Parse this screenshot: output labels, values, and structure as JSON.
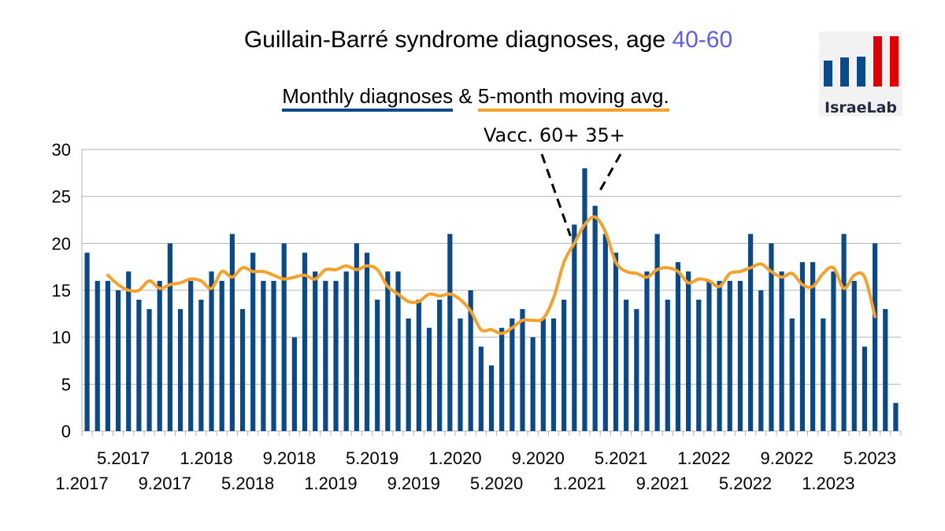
{
  "chart_data": {
    "type": "bar",
    "title_prefix": "Guillain-Barré syndrome diagnoses, age ",
    "title_age": "40-60",
    "legend": {
      "bars_label": "Monthly diagnoses",
      "joiner": "&",
      "line_label": "5-month moving avg."
    },
    "annotation": "Vacc. 60+ 35+",
    "logo_text": "IsraeLab",
    "colors": {
      "bars": "#0b4a8a",
      "line": "#f5a12b",
      "age_highlight": "#5b5ef0",
      "logo_blue": "#0b4a8a",
      "logo_red": "#e50000"
    },
    "ylim": [
      0,
      30
    ],
    "yticks": [
      0,
      5,
      10,
      15,
      20,
      25,
      30
    ],
    "grid": true,
    "x_tick_labels": [
      {
        "label": "1.2017",
        "index": 0,
        "row": 2
      },
      {
        "label": "5.2017",
        "index": 4,
        "row": 1
      },
      {
        "label": "9.2017",
        "index": 8,
        "row": 2
      },
      {
        "label": "1.2018",
        "index": 12,
        "row": 1
      },
      {
        "label": "5.2018",
        "index": 16,
        "row": 2
      },
      {
        "label": "9.2018",
        "index": 20,
        "row": 1
      },
      {
        "label": "1.2019",
        "index": 24,
        "row": 2
      },
      {
        "label": "5.2019",
        "index": 28,
        "row": 1
      },
      {
        "label": "9.2019",
        "index": 32,
        "row": 2
      },
      {
        "label": "1.2020",
        "index": 36,
        "row": 1
      },
      {
        "label": "5.2020",
        "index": 40,
        "row": 2
      },
      {
        "label": "9.2020",
        "index": 44,
        "row": 1
      },
      {
        "label": "1.2021",
        "index": 48,
        "row": 2
      },
      {
        "label": "5.2021",
        "index": 52,
        "row": 1
      },
      {
        "label": "9.2021",
        "index": 56,
        "row": 2
      },
      {
        "label": "1.2022",
        "index": 60,
        "row": 1
      },
      {
        "label": "5.2022",
        "index": 64,
        "row": 2
      },
      {
        "label": "9.2022",
        "index": 68,
        "row": 1
      },
      {
        "label": "1.2023",
        "index": 72,
        "row": 2
      },
      {
        "label": "5.2023",
        "index": 76,
        "row": 1
      }
    ],
    "months": [
      "1.2017",
      "2.2017",
      "3.2017",
      "4.2017",
      "5.2017",
      "6.2017",
      "7.2017",
      "8.2017",
      "9.2017",
      "10.2017",
      "11.2017",
      "12.2017",
      "1.2018",
      "2.2018",
      "3.2018",
      "4.2018",
      "5.2018",
      "6.2018",
      "7.2018",
      "8.2018",
      "9.2018",
      "10.2018",
      "11.2018",
      "12.2018",
      "1.2019",
      "2.2019",
      "3.2019",
      "4.2019",
      "5.2019",
      "6.2019",
      "7.2019",
      "8.2019",
      "9.2019",
      "10.2019",
      "11.2019",
      "12.2019",
      "1.2020",
      "2.2020",
      "3.2020",
      "4.2020",
      "5.2020",
      "6.2020",
      "7.2020",
      "8.2020",
      "9.2020",
      "10.2020",
      "11.2020",
      "12.2020",
      "1.2021",
      "2.2021",
      "3.2021",
      "4.2021",
      "5.2021",
      "6.2021",
      "7.2021",
      "8.2021",
      "9.2021",
      "10.2021",
      "11.2021",
      "12.2021",
      "1.2022",
      "2.2022",
      "3.2022",
      "4.2022",
      "5.2022",
      "6.2022",
      "7.2022",
      "8.2022",
      "9.2022",
      "10.2022",
      "11.2022",
      "12.2022",
      "1.2023",
      "2.2023",
      "3.2023",
      "4.2023",
      "5.2023",
      "6.2023",
      "7.2023"
    ],
    "monthly": [
      19,
      16,
      16,
      15,
      17,
      14,
      13,
      16,
      20,
      13,
      16,
      14,
      17,
      16,
      21,
      13,
      19,
      16,
      16,
      20,
      10,
      19,
      17,
      16,
      16,
      17,
      20,
      19,
      14,
      17,
      17,
      12,
      14,
      11,
      14,
      21,
      12,
      15,
      9,
      7,
      11,
      12,
      13,
      10,
      12,
      12,
      14,
      22,
      28,
      24,
      21,
      19,
      14,
      13,
      17,
      21,
      14,
      18,
      17,
      14,
      16,
      16,
      16,
      16,
      21,
      15,
      20,
      17,
      12,
      18,
      18,
      12,
      17,
      21,
      16,
      9,
      20,
      13,
      3
    ],
    "moving_avg": [
      null,
      null,
      16.6,
      15.6,
      15.0,
      15.0,
      16.0,
      15.2,
      15.6,
      15.8,
      16.2,
      16.0,
      15.2,
      17.0,
      16.4,
      17.4,
      17.0,
      17.0,
      16.6,
      16.2,
      16.4,
      16.6,
      16.2,
      17.2,
      17.2,
      17.6,
      17.2,
      17.6,
      17.2,
      15.4,
      14.6,
      13.8,
      13.8,
      14.6,
      14.4,
      14.6,
      14.0,
      12.8,
      10.8,
      10.8,
      10.4,
      11.0,
      11.8,
      11.8,
      12.0,
      14.2,
      18.0,
      20.0,
      22.0,
      22.8,
      21.2,
      18.0,
      17.0,
      16.8,
      16.4,
      17.2,
      17.4,
      17.0,
      15.8,
      16.2,
      16.0,
      15.4,
      16.8,
      17.0,
      17.4,
      17.8,
      17.0,
      16.4,
      16.8,
      15.6,
      15.4,
      16.8,
      17.4,
      15.2,
      16.6,
      16.4,
      12.2,
      null,
      null
    ]
  }
}
